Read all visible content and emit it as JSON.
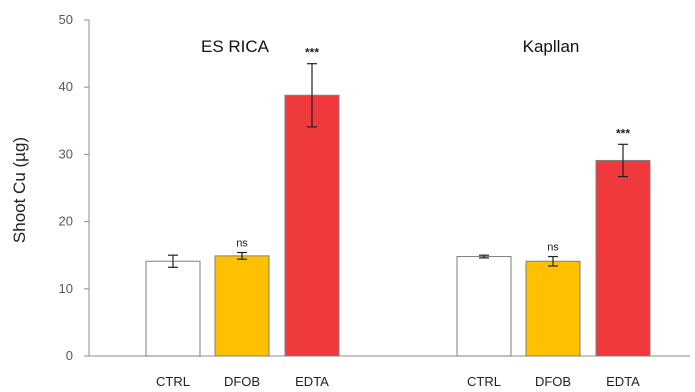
{
  "chart_data": {
    "type": "bar",
    "ylabel": "Shoot Cu (µg)",
    "ylim": [
      0,
      50
    ],
    "yticks": [
      0,
      10,
      20,
      30,
      40,
      50
    ],
    "grid": false,
    "colors": {
      "CTRL": "#ffffff",
      "DFOB": "#ffc000",
      "EDTA": "#f0393d"
    },
    "groups": [
      {
        "title": "ES RICA",
        "bars": [
          {
            "category": "CTRL",
            "value": 14.1,
            "error": 0.9,
            "significance": ""
          },
          {
            "category": "DFOB",
            "value": 14.9,
            "error": 0.5,
            "significance": "ns"
          },
          {
            "category": "EDTA",
            "value": 38.8,
            "error": 4.7,
            "significance": "***"
          }
        ]
      },
      {
        "title": "Kapllan",
        "bars": [
          {
            "category": "CTRL",
            "value": 14.8,
            "error": 0.2,
            "significance": ""
          },
          {
            "category": "DFOB",
            "value": 14.1,
            "error": 0.7,
            "significance": "ns"
          },
          {
            "category": "EDTA",
            "value": 29.1,
            "error": 2.4,
            "significance": "***"
          }
        ]
      }
    ]
  }
}
